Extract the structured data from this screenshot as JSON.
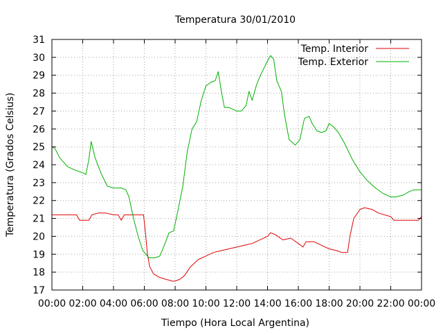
{
  "chart_data": {
    "type": "line",
    "title": "Temperatura 30/01/2010",
    "xlabel": "Tiempo (Hora Local Argentina)",
    "ylabel": "Temperatura (Grados Celsius)",
    "xlim": [
      0,
      24
    ],
    "ylim": [
      17,
      31
    ],
    "x_ticks": [
      "00:00",
      "02:00",
      "04:00",
      "06:00",
      "08:00",
      "10:00",
      "12:00",
      "14:00",
      "16:00",
      "18:00",
      "20:00",
      "22:00",
      "00:00"
    ],
    "y_ticks": [
      17,
      18,
      19,
      20,
      21,
      22,
      23,
      24,
      25,
      26,
      27,
      28,
      29,
      30,
      31
    ],
    "grid": true,
    "legend_position": "top-right",
    "series": [
      {
        "name": "Temp. Interior",
        "color": "#e00000",
        "points": [
          [
            0.0,
            21.2
          ],
          [
            1.0,
            21.2
          ],
          [
            1.6,
            21.2
          ],
          [
            1.8,
            20.9
          ],
          [
            2.4,
            20.9
          ],
          [
            2.6,
            21.2
          ],
          [
            3.0,
            21.3
          ],
          [
            3.5,
            21.3
          ],
          [
            4.0,
            21.2
          ],
          [
            4.3,
            21.2
          ],
          [
            4.5,
            20.9
          ],
          [
            4.7,
            21.2
          ],
          [
            5.0,
            21.2
          ],
          [
            5.5,
            21.2
          ],
          [
            5.95,
            21.2
          ],
          [
            6.05,
            20.4
          ],
          [
            6.2,
            19.0
          ],
          [
            6.35,
            18.3
          ],
          [
            6.6,
            17.9
          ],
          [
            7.0,
            17.7
          ],
          [
            7.4,
            17.6
          ],
          [
            7.8,
            17.5
          ],
          [
            8.0,
            17.5
          ],
          [
            8.3,
            17.6
          ],
          [
            8.6,
            17.8
          ],
          [
            9.0,
            18.3
          ],
          [
            9.5,
            18.7
          ],
          [
            10.0,
            18.9
          ],
          [
            10.5,
            19.1
          ],
          [
            11.0,
            19.2
          ],
          [
            11.5,
            19.3
          ],
          [
            12.0,
            19.4
          ],
          [
            12.5,
            19.5
          ],
          [
            13.0,
            19.6
          ],
          [
            13.5,
            19.8
          ],
          [
            14.0,
            20.0
          ],
          [
            14.2,
            20.2
          ],
          [
            14.5,
            20.1
          ],
          [
            15.0,
            19.8
          ],
          [
            15.5,
            19.9
          ],
          [
            16.0,
            19.6
          ],
          [
            16.3,
            19.4
          ],
          [
            16.5,
            19.7
          ],
          [
            17.0,
            19.7
          ],
          [
            17.5,
            19.5
          ],
          [
            18.0,
            19.3
          ],
          [
            18.5,
            19.2
          ],
          [
            18.8,
            19.1
          ],
          [
            19.2,
            19.1
          ],
          [
            19.35,
            20.0
          ],
          [
            19.6,
            21.0
          ],
          [
            20.0,
            21.5
          ],
          [
            20.3,
            21.6
          ],
          [
            20.8,
            21.5
          ],
          [
            21.2,
            21.3
          ],
          [
            22.0,
            21.1
          ],
          [
            22.2,
            20.9
          ],
          [
            23.0,
            20.9
          ],
          [
            23.8,
            20.9
          ],
          [
            24.0,
            21.1
          ]
        ]
      },
      {
        "name": "Temp. Exterior",
        "color": "#00b000",
        "points": [
          [
            0.0,
            25.0
          ],
          [
            0.2,
            24.9
          ],
          [
            0.5,
            24.4
          ],
          [
            1.0,
            23.9
          ],
          [
            1.5,
            23.7
          ],
          [
            2.0,
            23.55
          ],
          [
            2.2,
            23.45
          ],
          [
            2.4,
            24.3
          ],
          [
            2.55,
            25.3
          ],
          [
            2.8,
            24.4
          ],
          [
            3.2,
            23.5
          ],
          [
            3.6,
            22.8
          ],
          [
            4.0,
            22.7
          ],
          [
            4.5,
            22.7
          ],
          [
            4.8,
            22.6
          ],
          [
            5.0,
            22.2
          ],
          [
            5.3,
            21.0
          ],
          [
            5.6,
            20.0
          ],
          [
            5.9,
            19.2
          ],
          [
            6.3,
            18.8
          ],
          [
            6.7,
            18.8
          ],
          [
            7.0,
            18.9
          ],
          [
            7.3,
            19.5
          ],
          [
            7.6,
            20.2
          ],
          [
            7.9,
            20.3
          ],
          [
            8.2,
            21.5
          ],
          [
            8.5,
            22.8
          ],
          [
            8.8,
            24.8
          ],
          [
            9.1,
            26.0
          ],
          [
            9.4,
            26.4
          ],
          [
            9.7,
            27.6
          ],
          [
            10.0,
            28.4
          ],
          [
            10.3,
            28.6
          ],
          [
            10.6,
            28.7
          ],
          [
            10.8,
            29.2
          ],
          [
            11.0,
            28.1
          ],
          [
            11.2,
            27.2
          ],
          [
            11.5,
            27.2
          ],
          [
            12.0,
            27.0
          ],
          [
            12.3,
            27.0
          ],
          [
            12.6,
            27.3
          ],
          [
            12.8,
            28.1
          ],
          [
            13.0,
            27.6
          ],
          [
            13.3,
            28.5
          ],
          [
            13.6,
            29.1
          ],
          [
            14.0,
            29.8
          ],
          [
            14.2,
            30.1
          ],
          [
            14.4,
            29.9
          ],
          [
            14.6,
            28.7
          ],
          [
            14.9,
            28.1
          ],
          [
            15.1,
            26.8
          ],
          [
            15.4,
            25.4
          ],
          [
            15.8,
            25.1
          ],
          [
            16.1,
            25.4
          ],
          [
            16.4,
            26.6
          ],
          [
            16.7,
            26.7
          ],
          [
            16.9,
            26.3
          ],
          [
            17.2,
            25.9
          ],
          [
            17.5,
            25.8
          ],
          [
            17.8,
            25.9
          ],
          [
            18.0,
            26.3
          ],
          [
            18.3,
            26.1
          ],
          [
            18.6,
            25.8
          ],
          [
            19.0,
            25.2
          ],
          [
            19.5,
            24.3
          ],
          [
            20.0,
            23.6
          ],
          [
            20.5,
            23.1
          ],
          [
            21.0,
            22.7
          ],
          [
            21.5,
            22.4
          ],
          [
            22.0,
            22.2
          ],
          [
            22.3,
            22.2
          ],
          [
            22.8,
            22.3
          ],
          [
            23.2,
            22.5
          ],
          [
            23.5,
            22.6
          ],
          [
            24.0,
            22.6
          ]
        ]
      }
    ]
  }
}
